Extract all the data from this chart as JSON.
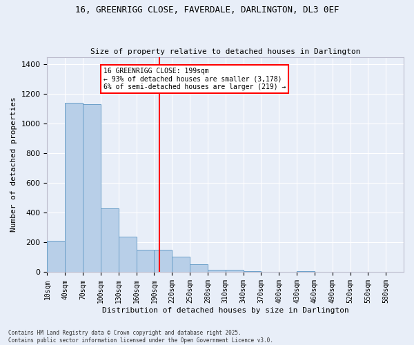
{
  "title_line1": "16, GREENRIGG CLOSE, FAVERDALE, DARLINGTON, DL3 0EF",
  "title_line2": "Size of property relative to detached houses in Darlington",
  "xlabel": "Distribution of detached houses by size in Darlington",
  "ylabel": "Number of detached properties",
  "annotation_line1": "16 GREENRIGG CLOSE: 199sqm",
  "annotation_line2": "← 93% of detached houses are smaller (3,178)",
  "annotation_line3": "6% of semi-detached houses are larger (219) →",
  "bar_color": "#b8cfe8",
  "bar_edge_color": "#6a9fc8",
  "vline_x": 199,
  "vline_color": "red",
  "background_color": "#e8eef8",
  "annotation_box_color": "white",
  "annotation_box_edge": "red",
  "footer_line1": "Contains HM Land Registry data © Crown copyright and database right 2025.",
  "footer_line2": "Contains public sector information licensed under the Open Government Licence v3.0.",
  "bins": [
    10,
    40,
    70,
    100,
    130,
    160,
    190,
    220,
    250,
    280,
    310,
    340,
    370,
    400,
    430,
    460,
    490,
    520,
    550,
    580,
    610
  ],
  "values": [
    210,
    1140,
    1130,
    430,
    240,
    150,
    150,
    105,
    55,
    15,
    15,
    5,
    0,
    0,
    5,
    0,
    0,
    0,
    0,
    0
  ],
  "ylim": [
    0,
    1450
  ],
  "yticks": [
    0,
    200,
    400,
    600,
    800,
    1000,
    1200,
    1400
  ]
}
